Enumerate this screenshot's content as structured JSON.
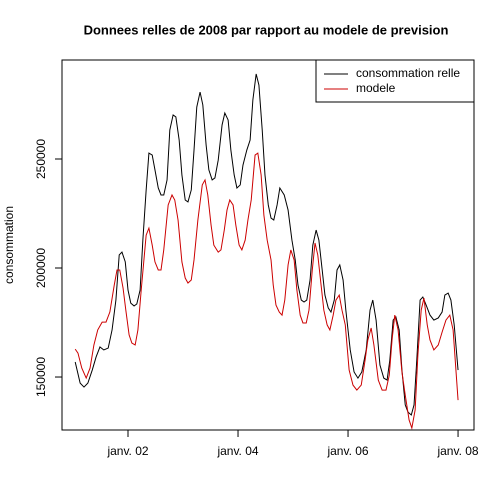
{
  "chart_data": {
    "type": "line",
    "title": "Donnees relles de 2008 par rapport au modele de prevision",
    "y_label": "consommation",
    "xlim": [
      0.8,
      8.29
    ],
    "ylim": [
      125700,
      295400
    ],
    "xticks": [
      {
        "value": 2,
        "label": "janv. 02"
      },
      {
        "value": 4,
        "label": "janv. 04"
      },
      {
        "value": 6,
        "label": "janv. 06"
      },
      {
        "value": 8,
        "label": "janv. 08"
      }
    ],
    "yticks": [
      150000,
      200000,
      250000
    ],
    "legend": "top-right",
    "series": [
      {
        "name": "consommation relle",
        "color": "#000000",
        "x": [
          1.04,
          1.13,
          1.2,
          1.27,
          1.35,
          1.42,
          1.49,
          1.56,
          1.64,
          1.71,
          1.78,
          1.84,
          1.89,
          1.95,
          2.0,
          2.05,
          2.11,
          2.16,
          2.22,
          2.27,
          2.33,
          2.38,
          2.44,
          2.49,
          2.55,
          2.6,
          2.65,
          2.71,
          2.76,
          2.82,
          2.87,
          2.93,
          2.98,
          3.04,
          3.09,
          3.15,
          3.2,
          3.25,
          3.31,
          3.36,
          3.42,
          3.47,
          3.53,
          3.58,
          3.64,
          3.71,
          3.76,
          3.82,
          3.87,
          3.93,
          3.98,
          4.04,
          4.09,
          4.16,
          4.22,
          4.27,
          4.33,
          4.38,
          4.44,
          4.49,
          4.55,
          4.6,
          4.65,
          4.71,
          4.76,
          4.84,
          4.91,
          4.98,
          5.04,
          5.09,
          5.15,
          5.2,
          5.25,
          5.31,
          5.36,
          5.42,
          5.47,
          5.53,
          5.58,
          5.64,
          5.69,
          5.75,
          5.8,
          5.85,
          5.91,
          5.96,
          6.04,
          6.11,
          6.18,
          6.25,
          6.33,
          6.4,
          6.45,
          6.51,
          6.58,
          6.65,
          6.71,
          6.76,
          6.82,
          6.87,
          6.93,
          6.98,
          7.04,
          7.09,
          7.15,
          7.2,
          7.25,
          7.31,
          7.36,
          7.42,
          7.49,
          7.56,
          7.64,
          7.71,
          7.76,
          7.82,
          7.87,
          7.93,
          8.0
        ],
        "values": [
          156900,
          147200,
          145400,
          147200,
          153200,
          159200,
          163800,
          162400,
          163300,
          171600,
          185300,
          206000,
          207300,
          202800,
          189900,
          183900,
          182600,
          183500,
          189900,
          212800,
          235800,
          252700,
          251800,
          245000,
          236700,
          233500,
          233500,
          240400,
          263300,
          270200,
          269300,
          258700,
          242700,
          231200,
          230300,
          235800,
          254100,
          273800,
          280700,
          274800,
          256400,
          245000,
          240400,
          241300,
          249500,
          265600,
          271100,
          267900,
          254100,
          242700,
          236700,
          238100,
          247200,
          254100,
          258700,
          277100,
          289000,
          283900,
          263300,
          242700,
          228900,
          222900,
          222000,
          228900,
          236700,
          233500,
          226600,
          212800,
          203700,
          192200,
          185300,
          184400,
          185300,
          194500,
          210500,
          217400,
          212800,
          199100,
          187600,
          181700,
          179800,
          185300,
          199100,
          201400,
          194500,
          180700,
          162400,
          152300,
          149500,
          152300,
          162400,
          180700,
          185300,
          176100,
          155500,
          149500,
          148600,
          157800,
          176100,
          177500,
          171600,
          153200,
          137200,
          133900,
          132600,
          137200,
          157800,
          185300,
          186700,
          183000,
          178400,
          176100,
          177100,
          179800,
          187600,
          188500,
          185300,
          173900,
          153200
        ]
      },
      {
        "name": "modele",
        "color": "#cc0000",
        "x": [
          1.04,
          1.09,
          1.16,
          1.24,
          1.31,
          1.38,
          1.45,
          1.53,
          1.6,
          1.67,
          1.75,
          1.8,
          1.85,
          1.91,
          1.96,
          2.02,
          2.07,
          2.13,
          2.18,
          2.24,
          2.33,
          2.38,
          2.44,
          2.49,
          2.55,
          2.6,
          2.65,
          2.73,
          2.8,
          2.85,
          2.91,
          2.98,
          3.04,
          3.09,
          3.15,
          3.2,
          3.27,
          3.35,
          3.4,
          3.45,
          3.51,
          3.56,
          3.64,
          3.69,
          3.75,
          3.8,
          3.85,
          3.91,
          3.96,
          4.02,
          4.07,
          4.13,
          4.18,
          4.24,
          4.31,
          4.36,
          4.42,
          4.47,
          4.53,
          4.6,
          4.64,
          4.69,
          4.75,
          4.8,
          4.85,
          4.91,
          4.96,
          5.02,
          5.07,
          5.13,
          5.18,
          5.24,
          5.29,
          5.35,
          5.4,
          5.45,
          5.51,
          5.56,
          5.62,
          5.67,
          5.73,
          5.78,
          5.84,
          5.89,
          5.95,
          6.02,
          6.09,
          6.16,
          6.24,
          6.31,
          6.36,
          6.42,
          6.47,
          6.55,
          6.62,
          6.69,
          6.75,
          6.8,
          6.85,
          6.91,
          6.98,
          7.04,
          7.11,
          7.16,
          7.22,
          7.27,
          7.33,
          7.38,
          7.44,
          7.49,
          7.56,
          7.64,
          7.71,
          7.78,
          7.85,
          7.91,
          8.0
        ],
        "values": [
          162800,
          161000,
          154100,
          149500,
          154100,
          164700,
          171600,
          175200,
          175200,
          179800,
          192200,
          199100,
          199100,
          190800,
          180700,
          169300,
          165600,
          164700,
          171600,
          189900,
          215100,
          218300,
          210500,
          202800,
          199100,
          199100,
          208300,
          228900,
          233500,
          231200,
          222000,
          202800,
          195400,
          193100,
          194500,
          203700,
          222000,
          238100,
          240400,
          233500,
          219700,
          210500,
          207300,
          208300,
          217400,
          226600,
          231200,
          228900,
          219700,
          210500,
          208300,
          212800,
          222000,
          231200,
          251800,
          252700,
          242700,
          224300,
          212800,
          203700,
          192200,
          183000,
          179800,
          178400,
          185300,
          201400,
          208300,
          203700,
          189900,
          178400,
          174800,
          174800,
          180700,
          199100,
          211500,
          206000,
          192200,
          180700,
          173900,
          171600,
          178400,
          185300,
          187600,
          180700,
          173900,
          153200,
          146300,
          144000,
          146300,
          157800,
          167000,
          172500,
          164700,
          148600,
          144000,
          144000,
          150900,
          167000,
          178400,
          171600,
          152300,
          141700,
          130300,
          126600,
          134900,
          160100,
          180700,
          186200,
          173900,
          167000,
          162400,
          164700,
          170600,
          176100,
          178400,
          171600,
          139400
        ]
      }
    ]
  }
}
